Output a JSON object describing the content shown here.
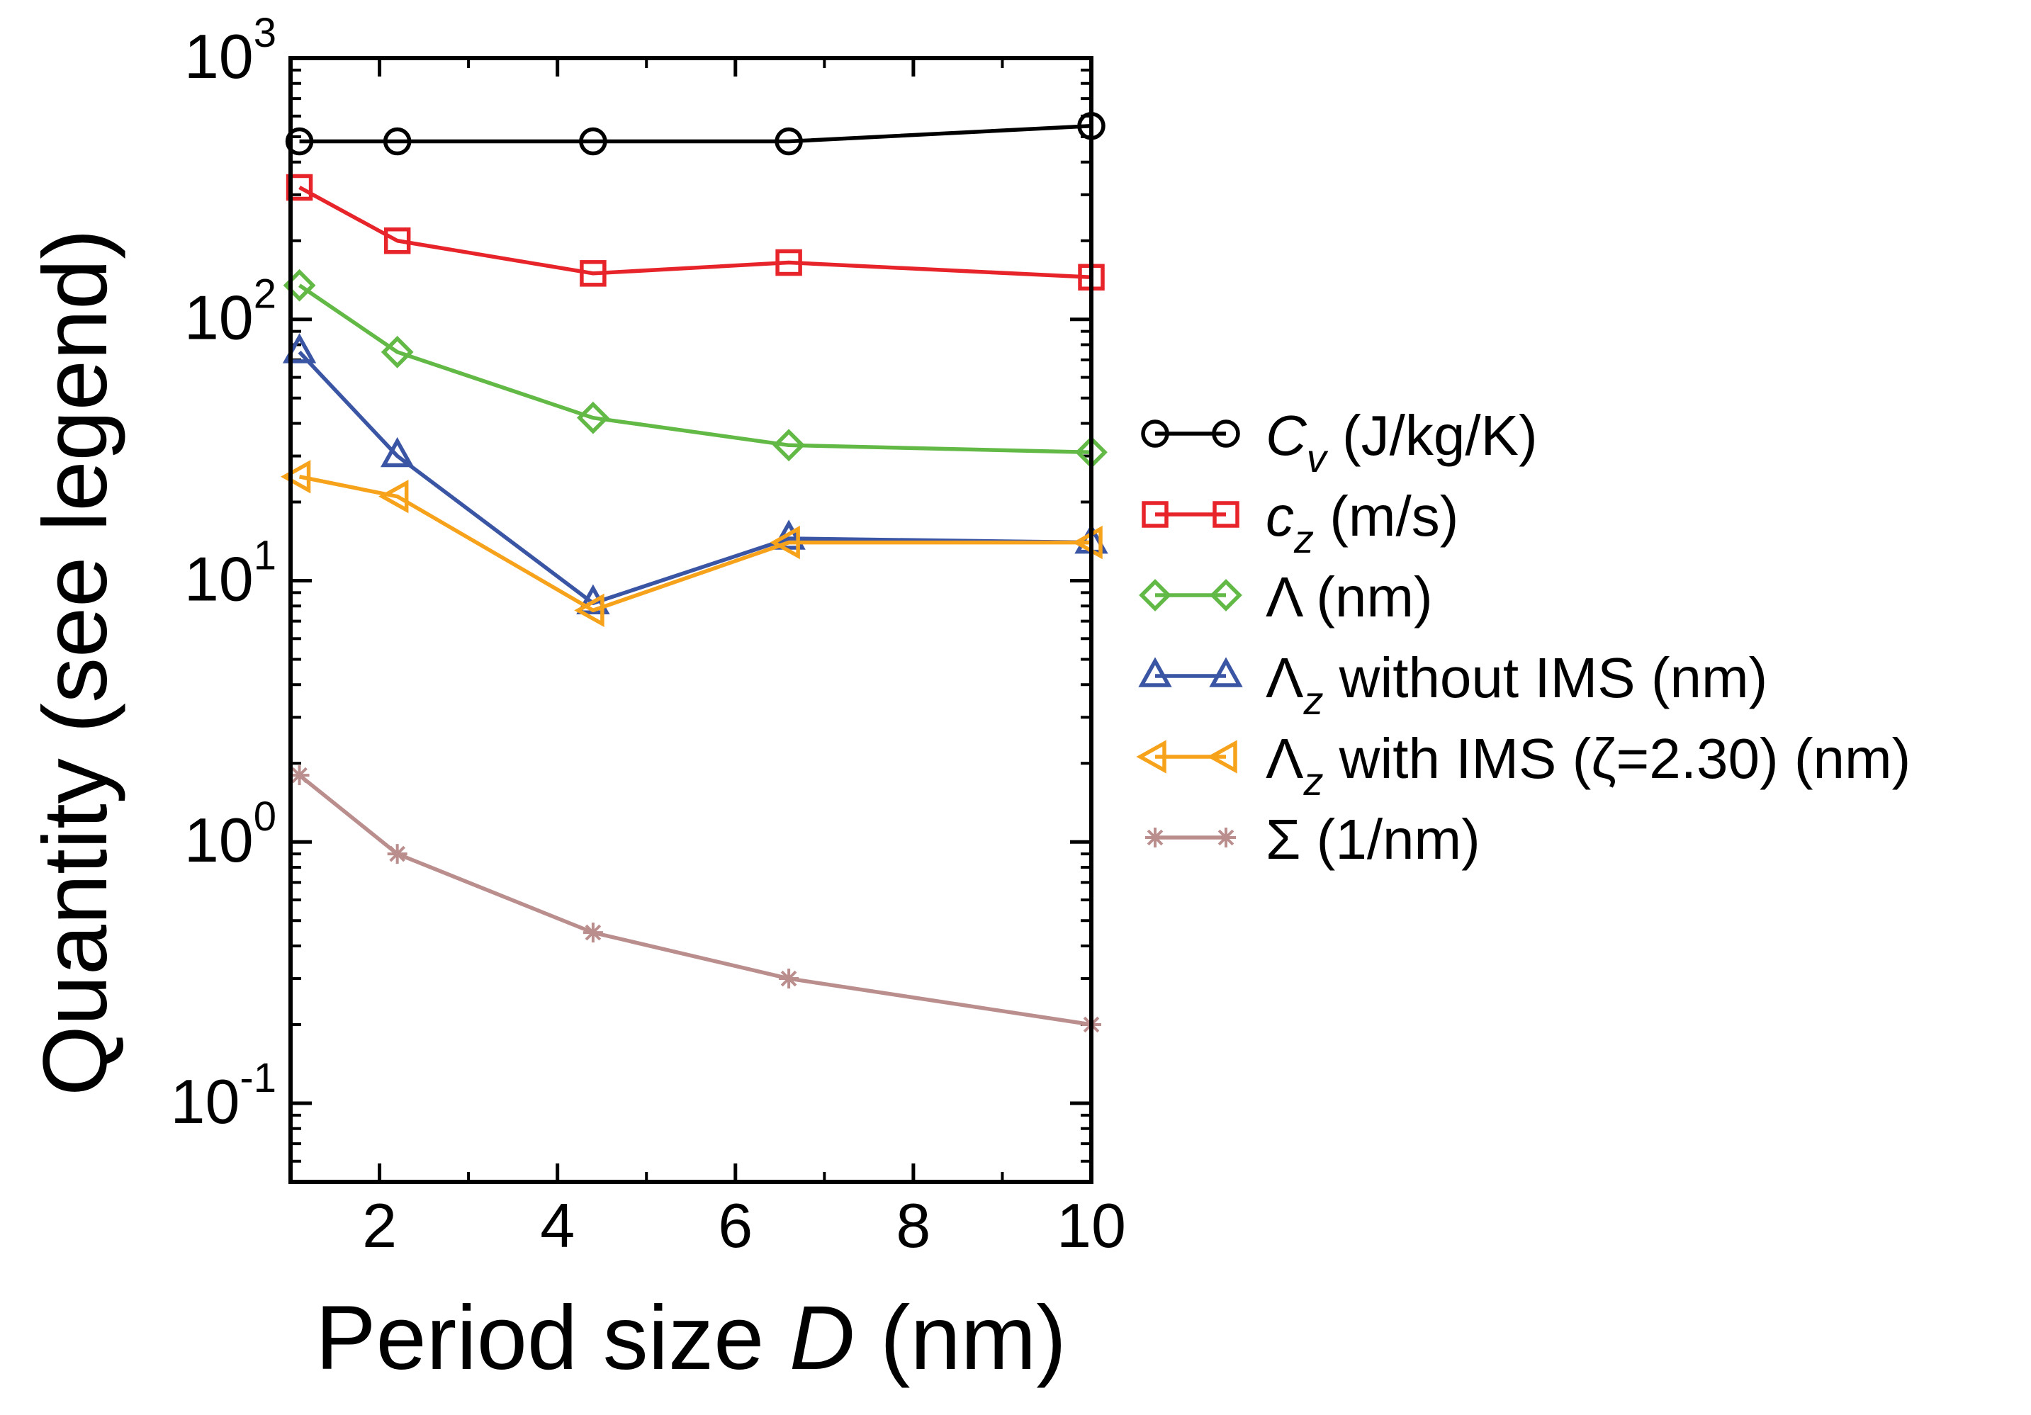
{
  "chart_data": {
    "type": "line",
    "title": "",
    "xlabel_prefix": "Period size ",
    "xlabel_var": "D",
    "xlabel_suffix": " (nm)",
    "ylabel": "Quantity (see legend)",
    "xscale": "linear",
    "yscale": "log",
    "xlim": [
      1.0,
      10.0
    ],
    "ylim": [
      0.05,
      1000
    ],
    "x_ticks": [
      2,
      4,
      6,
      8,
      10
    ],
    "x_tick_labels": [
      "2",
      "4",
      "6",
      "8",
      "10"
    ],
    "y_ticks": [
      0.1,
      1,
      10,
      100,
      1000
    ],
    "y_tick_labels": [
      {
        "base": "10",
        "exp": "-1"
      },
      {
        "base": "10",
        "exp": "0"
      },
      {
        "base": "10",
        "exp": "1"
      },
      {
        "base": "10",
        "exp": "2"
      },
      {
        "base": "10",
        "exp": "3"
      }
    ],
    "x": [
      1.1,
      2.2,
      4.4,
      6.6,
      10.0
    ],
    "legend_position": "right",
    "series": [
      {
        "key": "cv",
        "name": "C_v (J/kg/K)",
        "legend": {
          "sym": "C",
          "sub": "v",
          "italic_sym": true,
          "text": " (J/kg/K)"
        },
        "color": "#000000",
        "marker": "circle",
        "values": [
          480,
          480,
          480,
          480,
          550
        ]
      },
      {
        "key": "cz",
        "name": "c_z (m/s)",
        "legend": {
          "sym": "c",
          "sub": "z",
          "italic_sym": true,
          "text": " (m/s)"
        },
        "color": "#e8242b",
        "marker": "square",
        "values": [
          320,
          200,
          150,
          165,
          145
        ]
      },
      {
        "key": "lambda",
        "name": "Λ (nm)",
        "legend": {
          "sym": "Λ",
          "sub": "",
          "italic_sym": false,
          "text": " (nm)"
        },
        "color": "#62b946",
        "marker": "diamond",
        "values": [
          135,
          75,
          42,
          33,
          31
        ]
      },
      {
        "key": "lambda_z_no_ims",
        "name": "Λ_z without IMS (nm)",
        "legend": {
          "sym": "Λ",
          "sub": "z",
          "italic_sym": false,
          "text": " without IMS  (nm)"
        },
        "color": "#3a55a4",
        "marker": "triangle-up",
        "values": [
          75,
          30,
          8.2,
          14.5,
          14
        ]
      },
      {
        "key": "lambda_z_ims",
        "name": "Λ_z with IMS (ζ=2.30) (nm)",
        "legend": {
          "sym": "Λ",
          "sub": "z",
          "italic_sym": false,
          "text": " with IMS (ζ=2.30) (nm)"
        },
        "color": "#f7a21b",
        "marker": "triangle-left",
        "values": [
          25,
          21,
          7.7,
          14,
          14
        ]
      },
      {
        "key": "sigma",
        "name": "Σ (1/nm)",
        "legend": {
          "sym": "Σ",
          "sub": "",
          "italic_sym": false,
          "text": " (1/nm)"
        },
        "color": "#bb8e8e",
        "marker": "asterisk",
        "values": [
          1.8,
          0.9,
          0.45,
          0.3,
          0.2
        ]
      }
    ]
  }
}
